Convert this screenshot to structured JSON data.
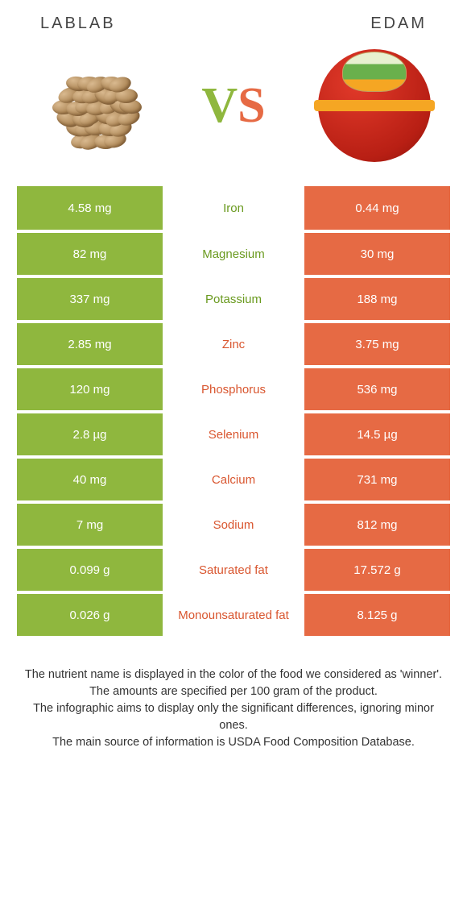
{
  "header": {
    "left_title": "LABLAB",
    "right_title": "EDAM"
  },
  "vs": {
    "v": "V",
    "s": "S"
  },
  "colors": {
    "green": "#8fb73e",
    "orange": "#e66a44",
    "text_green": "#6a9a1f",
    "text_orange": "#d9562f"
  },
  "rows": [
    {
      "label": "Iron",
      "left": "4.58 mg",
      "right": "0.44 mg",
      "winner": "left"
    },
    {
      "label": "Magnesium",
      "left": "82 mg",
      "right": "30 mg",
      "winner": "left"
    },
    {
      "label": "Potassium",
      "left": "337 mg",
      "right": "188 mg",
      "winner": "left"
    },
    {
      "label": "Zinc",
      "left": "2.85 mg",
      "right": "3.75 mg",
      "winner": "right"
    },
    {
      "label": "Phosphorus",
      "left": "120 mg",
      "right": "536 mg",
      "winner": "right"
    },
    {
      "label": "Selenium",
      "left": "2.8 µg",
      "right": "14.5 µg",
      "winner": "right"
    },
    {
      "label": "Calcium",
      "left": "40 mg",
      "right": "731 mg",
      "winner": "right"
    },
    {
      "label": "Sodium",
      "left": "7 mg",
      "right": "812 mg",
      "winner": "right"
    },
    {
      "label": "Saturated fat",
      "left": "0.099 g",
      "right": "17.572 g",
      "winner": "right"
    },
    {
      "label": "Monounsaturated fat",
      "left": "0.026 g",
      "right": "8.125 g",
      "winner": "right"
    }
  ],
  "footer": {
    "line1": "The nutrient name is displayed in the color of the food we considered as 'winner'.",
    "line2": "The amounts are specified per 100 gram of the product.",
    "line3": "The infographic aims to display only the significant differences, ignoring minor ones.",
    "line4": "The main source of information is USDA Food Composition Database."
  }
}
